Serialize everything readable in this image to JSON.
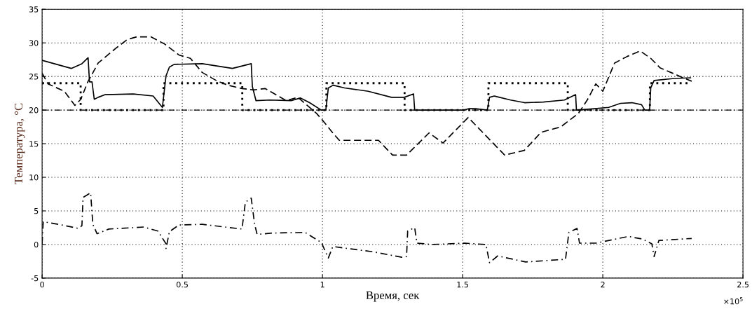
{
  "chart_data": {
    "type": "line",
    "xlabel": "Время, сек",
    "ylabel": "Температура, °C",
    "xlim": [
      0,
      2.5
    ],
    "xticks": [
      0,
      0.5,
      1,
      1.5,
      2,
      2.5
    ],
    "ylim": [
      -5,
      35
    ],
    "yticks": [
      -5,
      0,
      5,
      10,
      15,
      20,
      25,
      30,
      35
    ],
    "grid": true,
    "marker": "none",
    "annotations": [
      "×10$^{5}$"
    ],
    "ref_lines": [
      {
        "axis": "y",
        "value": 20,
        "color": "#000000",
        "line_style": "dashdot"
      }
    ],
    "series": [
      {
        "color": "#000000",
        "line_style": "dotted",
        "x": [
          0,
          0.1375,
          0.1375,
          0.433,
          0.433,
          0.714,
          0.714,
          1.014,
          1.014,
          1.293,
          1.293,
          1.592,
          1.592,
          1.875,
          1.875,
          2.168,
          2.168,
          2.308
        ],
        "values": [
          24,
          24,
          20,
          20,
          24,
          24,
          20,
          20,
          24,
          24,
          20,
          20,
          24,
          24,
          20,
          20,
          24,
          24
        ]
      },
      {
        "color": "#000000",
        "line_style": "solid",
        "x": [
          0,
          0.104,
          0.142,
          0.164,
          0.169,
          0.178,
          0.186,
          0.2,
          0.225,
          0.325,
          0.396,
          0.429,
          0.442,
          0.454,
          0.471,
          0.571,
          0.679,
          0.746,
          0.75,
          0.763,
          0.813,
          0.888,
          0.921,
          0.954,
          0.996,
          1.012,
          1.021,
          1.038,
          1.079,
          1.163,
          1.246,
          1.292,
          1.325,
          1.329,
          1.504,
          1.521,
          1.546,
          1.588,
          1.596,
          1.613,
          1.621,
          1.671,
          1.721,
          1.788,
          1.863,
          1.903,
          1.906,
          1.971,
          2.021,
          2.063,
          2.104,
          2.138,
          2.15,
          2.167,
          2.171,
          2.183,
          2.254,
          2.313
        ],
        "values": [
          27.4,
          26.2,
          26.9,
          27.8,
          24.2,
          24.2,
          21.6,
          21.9,
          22.3,
          22.4,
          22.1,
          20.4,
          25.1,
          26.4,
          26.8,
          26.9,
          26.2,
          26.9,
          23.5,
          21.4,
          21.5,
          21.4,
          21.8,
          21.1,
          20.0,
          20.0,
          23.3,
          23.7,
          23.3,
          22.8,
          21.9,
          21.9,
          22.4,
          20.0,
          20.0,
          20.2,
          20.2,
          20.0,
          21.9,
          22.1,
          22.0,
          21.5,
          21.1,
          21.2,
          21.5,
          22.3,
          20.0,
          20.2,
          20.4,
          21.0,
          21.1,
          20.8,
          20.0,
          20.0,
          23.3,
          24.4,
          24.7,
          24.8
        ]
      },
      {
        "color": "#000000",
        "line_style": "dashed",
        "x": [
          0,
          0.021,
          0.079,
          0.117,
          0.138,
          0.163,
          0.2,
          0.263,
          0.304,
          0.338,
          0.388,
          0.438,
          0.488,
          0.529,
          0.571,
          0.621,
          0.663,
          0.713,
          0.754,
          0.796,
          0.871,
          0.912,
          0.979,
          1.004,
          1.037,
          1.06,
          1.2,
          1.25,
          1.3,
          1.38,
          1.43,
          1.52,
          1.65,
          1.72,
          1.78,
          1.85,
          1.913,
          1.946,
          1.975,
          2.0,
          2.021,
          2.042,
          2.088,
          2.133,
          2.171,
          2.204,
          2.254,
          2.292,
          2.317
        ],
        "values": [
          25.5,
          23.9,
          22.8,
          20.7,
          21.6,
          24.2,
          27.0,
          29.2,
          30.5,
          30.9,
          30.9,
          29.8,
          28.2,
          27.7,
          25.6,
          24.4,
          23.7,
          23.2,
          23.0,
          23.2,
          21.4,
          21.9,
          19.5,
          18.3,
          16.6,
          15.5,
          15.5,
          13.3,
          13.3,
          16.6,
          15.1,
          18.9,
          13.3,
          14.0,
          16.7,
          17.5,
          19.5,
          21.6,
          23.9,
          22.8,
          24.9,
          27.0,
          28.0,
          28.8,
          27.7,
          26.3,
          25.4,
          24.7,
          24.3
        ]
      },
      {
        "color": "#000000",
        "line_style": "dashdot",
        "x": [
          0,
          0.004,
          0.071,
          0.129,
          0.142,
          0.146,
          0.173,
          0.181,
          0.196,
          0.238,
          0.363,
          0.413,
          0.442,
          0.442,
          0.454,
          0.488,
          0.571,
          0.713,
          0.725,
          0.746,
          0.758,
          0.767,
          0.821,
          0.938,
          0.996,
          1.021,
          1.037,
          1.183,
          1.283,
          1.3,
          1.304,
          1.329,
          1.337,
          1.392,
          1.508,
          1.583,
          1.596,
          1.625,
          1.725,
          1.867,
          1.879,
          1.908,
          1.917,
          1.975,
          2.092,
          2.142,
          2.175,
          2.183,
          2.2,
          2.317
        ],
        "values": [
          0.1,
          3.4,
          2.9,
          2.4,
          2.8,
          7.0,
          7.7,
          3.0,
          1.6,
          2.3,
          2.6,
          2.0,
          0.1,
          -0.6,
          1.9,
          2.9,
          3.0,
          2.3,
          6.3,
          6.9,
          3.0,
          1.5,
          1.7,
          1.8,
          0.3,
          -2.0,
          -0.3,
          -1.1,
          -1.9,
          -1.8,
          2.0,
          2.5,
          0.2,
          0.0,
          0.2,
          0.0,
          -2.7,
          -1.7,
          -2.6,
          -2.2,
          1.8,
          2.4,
          0.2,
          0.2,
          1.2,
          0.8,
          0.1,
          -1.8,
          0.6,
          0.9
        ]
      }
    ]
  }
}
